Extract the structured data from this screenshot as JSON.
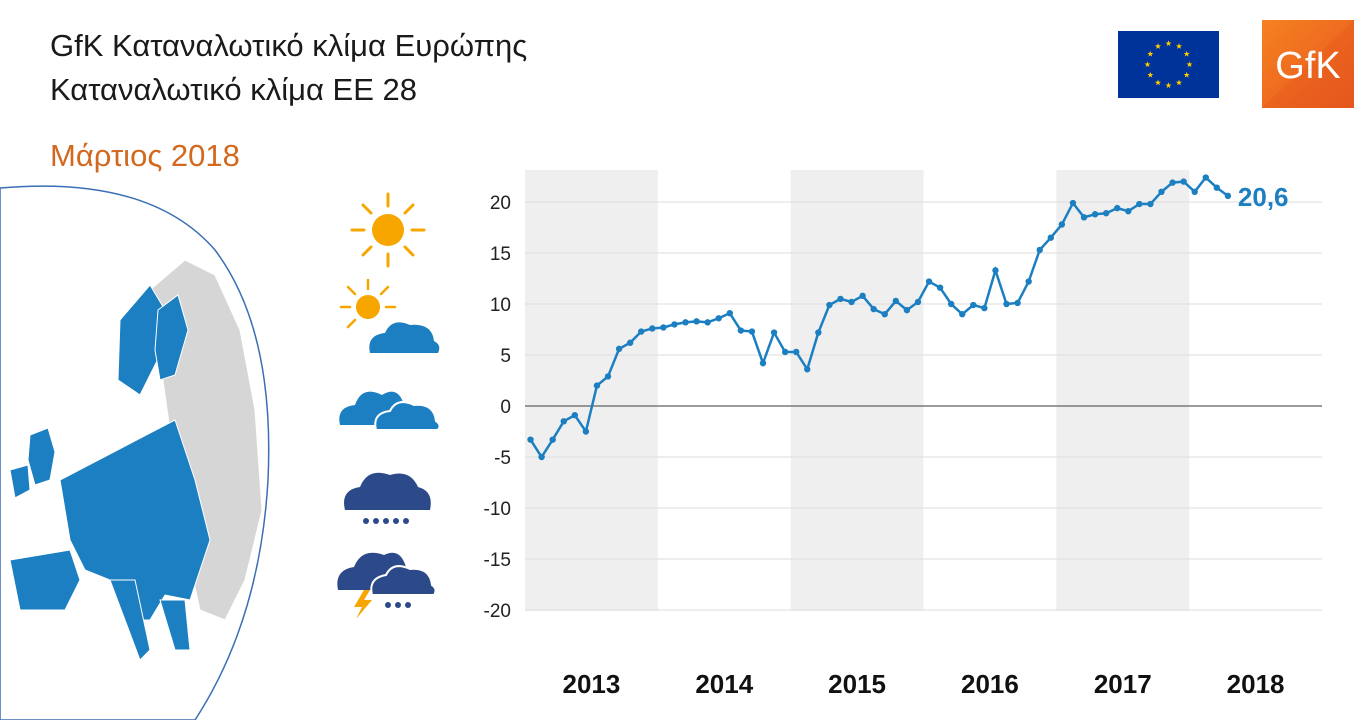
{
  "header": {
    "title_line1": "GfK Καταναλωτικό κλίμα Ευρώπης",
    "title_line2": "Καταναλωτικό κλίμα ΕΕ 28",
    "subtitle": "Μάρτιος 2018"
  },
  "logo": {
    "brand": "GfK"
  },
  "colors": {
    "series": "#1b7fc1",
    "band": "#efefef",
    "subtitle": "#d2691e",
    "map_eu": "#1b7fc1",
    "map_other": "#d6d6d6"
  },
  "weather_icons": [
    "sun-icon",
    "sun-behind-cloud-icon",
    "clouds-icon",
    "rain-cloud-icon",
    "storm-cloud-icon"
  ],
  "chart_data": {
    "type": "line",
    "title": "Καταναλωτικό κλίμα ΕΕ 28",
    "xlabel": "",
    "ylabel": "",
    "ylim": [
      -20,
      23
    ],
    "yticks": [
      20,
      15,
      10,
      5,
      0,
      -5,
      -10,
      -15,
      -20
    ],
    "grid": true,
    "years": [
      "2013",
      "2014",
      "2015",
      "2016",
      "2017",
      "2018"
    ],
    "shaded_years": [
      "2013",
      "2015",
      "2017"
    ],
    "start": "2013-01",
    "series": [
      {
        "name": "",
        "values": [
          -3.3,
          -5.0,
          -3.3,
          -1.5,
          -0.9,
          -2.5,
          2.0,
          2.9,
          5.6,
          6.2,
          7.3,
          7.6,
          7.7,
          8.0,
          8.2,
          8.3,
          8.2,
          8.6,
          9.1,
          7.4,
          7.3,
          4.2,
          7.2,
          5.3,
          5.3,
          3.6,
          7.2,
          9.9,
          10.5,
          10.2,
          10.8,
          9.5,
          9.0,
          10.3,
          9.4,
          10.2,
          12.2,
          11.6,
          10.0,
          9.0,
          9.9,
          9.6,
          13.3,
          10.0,
          10.1,
          12.2,
          15.3,
          16.5,
          17.8,
          19.9,
          18.5,
          18.8,
          18.9,
          19.4,
          19.1,
          19.8,
          19.8,
          21.0,
          21.9,
          22.0,
          21.0,
          22.4,
          21.4,
          20.6
        ]
      }
    ],
    "last_value_label": "20,6"
  }
}
